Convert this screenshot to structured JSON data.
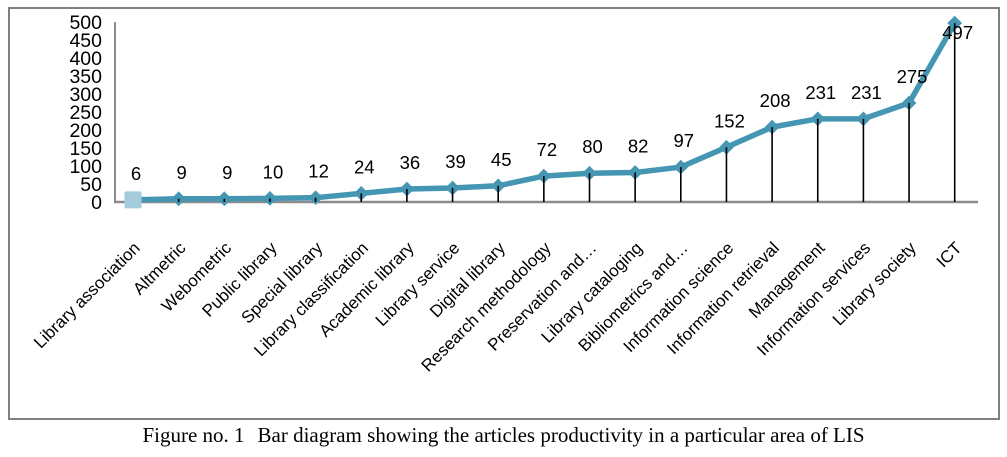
{
  "figure": {
    "caption_prefix": "Figure no. 1",
    "caption_text": "Bar diagram showing the articles productivity in a particular area of LIS"
  },
  "chart_data": {
    "type": "line",
    "title": "",
    "xlabel": "",
    "ylabel": "",
    "categories": [
      "Library association",
      "Altmetric",
      "Webometric",
      "Public library",
      "Special library",
      "Library classification",
      "Academic library",
      "Library service",
      "Digital library",
      "Research methodology",
      "Preservation and…",
      "Library cataloging",
      "Bibliometrics and…",
      "Information science",
      "Information retrieval",
      "Management",
      "Information services",
      "Library society",
      "ICT"
    ],
    "values": [
      6,
      9,
      9,
      10,
      12,
      24,
      36,
      39,
      45,
      72,
      80,
      82,
      97,
      152,
      208,
      231,
      231,
      275,
      497
    ],
    "ylim": [
      0,
      500
    ],
    "yticks": [
      0,
      50,
      100,
      150,
      200,
      250,
      300,
      350,
      400,
      450,
      500
    ],
    "grid": false,
    "legend_position": "none",
    "data_labels": true,
    "drop_lines": true,
    "marker": "diamond",
    "first_point_marker": "square",
    "category_label_rotation_deg": -45,
    "colors": {
      "line": "#4496B2",
      "marker": "#4496B2",
      "first_marker_fill": "#A3CBDC",
      "axis": "#8C8C8C",
      "drop_line": "#000000",
      "text": "#000000",
      "frame_border": "#808080"
    }
  }
}
